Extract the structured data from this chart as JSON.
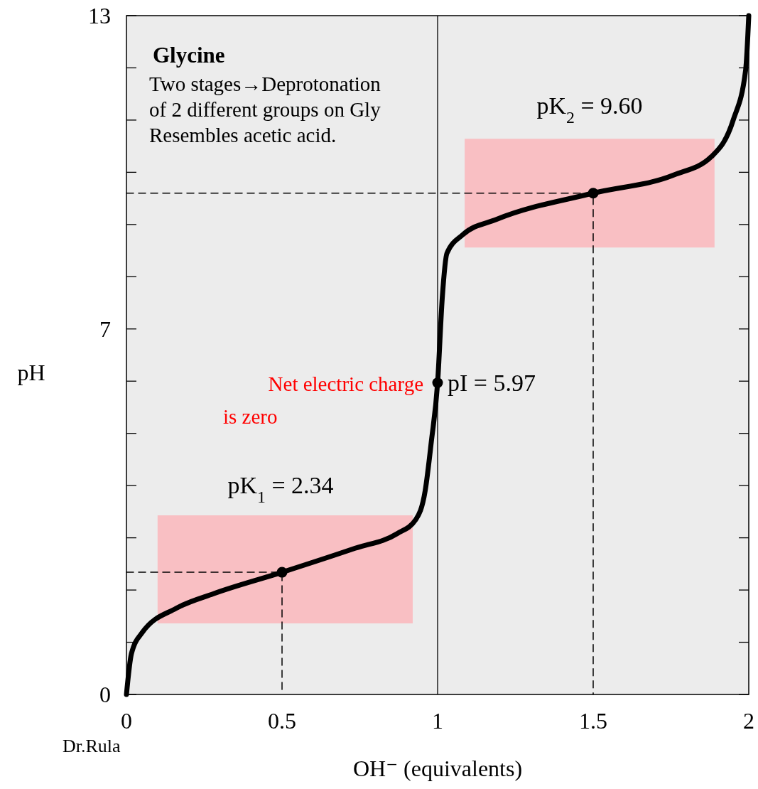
{
  "chart_data": {
    "type": "line",
    "title": "Glycine",
    "xlabel": "OH⁻ (equivalents)",
    "ylabel": "pH",
    "xlim": [
      0,
      2
    ],
    "ylim": [
      0,
      13
    ],
    "xticks": [
      0,
      0.5,
      1,
      1.5,
      2
    ],
    "yticks": [
      0,
      {
        "value": 1,
        "label": null
      },
      {
        "value": 2,
        "label": null
      },
      {
        "value": 3,
        "label": null
      },
      {
        "value": 4,
        "label": null
      },
      {
        "value": 5,
        "label": null
      },
      {
        "value": 6,
        "label": null
      },
      7,
      {
        "value": 8,
        "label": null
      },
      {
        "value": 9,
        "label": null
      },
      {
        "value": 10,
        "label": null
      },
      {
        "value": 11,
        "label": null
      },
      {
        "value": 12,
        "label": null
      },
      13
    ],
    "grid": false,
    "series": [
      {
        "type": "area",
        "color": "#f9bfc3",
        "x": [
          0.1,
          0.1,
          0.92,
          0.92
        ],
        "values": [
          1.36,
          3.43,
          3.43,
          1.36
        ]
      },
      {
        "type": "area",
        "color": "#f9bfc3",
        "x": [
          1.087,
          1.087,
          1.89,
          1.89
        ],
        "values": [
          8.56,
          10.64,
          10.64,
          8.56
        ]
      },
      {
        "color": "#000000",
        "marker": "none",
        "x": [
          0,
          0.016,
          0.05,
          0.16,
          0.28,
          0.5,
          0.735,
          0.87,
          0.93,
          0.96,
          0.98,
          1,
          1.015,
          1.03,
          1.08,
          1.19,
          1.5,
          1.76,
          1.88,
          1.95,
          1.99,
          2
        ],
        "values": [
          0,
          0.78,
          1.18,
          1.65,
          1.93,
          2.34,
          2.8,
          3.08,
          3.35,
          3.9,
          4.85,
          5.97,
          7.6,
          8.45,
          8.8,
          9.1,
          9.6,
          9.95,
          10.3,
          11,
          11.96,
          13
        ]
      },
      {
        "type": "scatter",
        "color": "#000000",
        "marker": "circle",
        "x": [
          0.5,
          1,
          1.5
        ],
        "values": [
          2.34,
          5.97,
          9.6
        ]
      },
      {
        "type": "line",
        "color": "#000000",
        "line_style": "dashed",
        "x": [
          0,
          0.5,
          0.5
        ],
        "values": [
          2.34,
          2.34,
          0
        ]
      },
      {
        "type": "line",
        "color": "#000000",
        "line_style": "dashed",
        "x": [
          0,
          1.5,
          1.5
        ],
        "values": [
          9.6,
          9.6,
          0
        ]
      }
    ],
    "ref_lines": [
      {
        "axis": "x",
        "value": 1,
        "color": "#000000",
        "line_style": "solid"
      }
    ],
    "annotations": [
      "Two stages→Deprotonation\nof 2 different groups on Gly\nResembles acetic acid.",
      "pK$_{1}$ = 2.34",
      "pK$_{2}$ = 9.60",
      {
        "text": "pI = 5.97",
        "x": 1,
        "y": 5.97
      },
      {
        "text": "Net electric charge\nis zero",
        "x": 1,
        "y": 5.97
      },
      "Dr.Rula"
    ]
  }
}
